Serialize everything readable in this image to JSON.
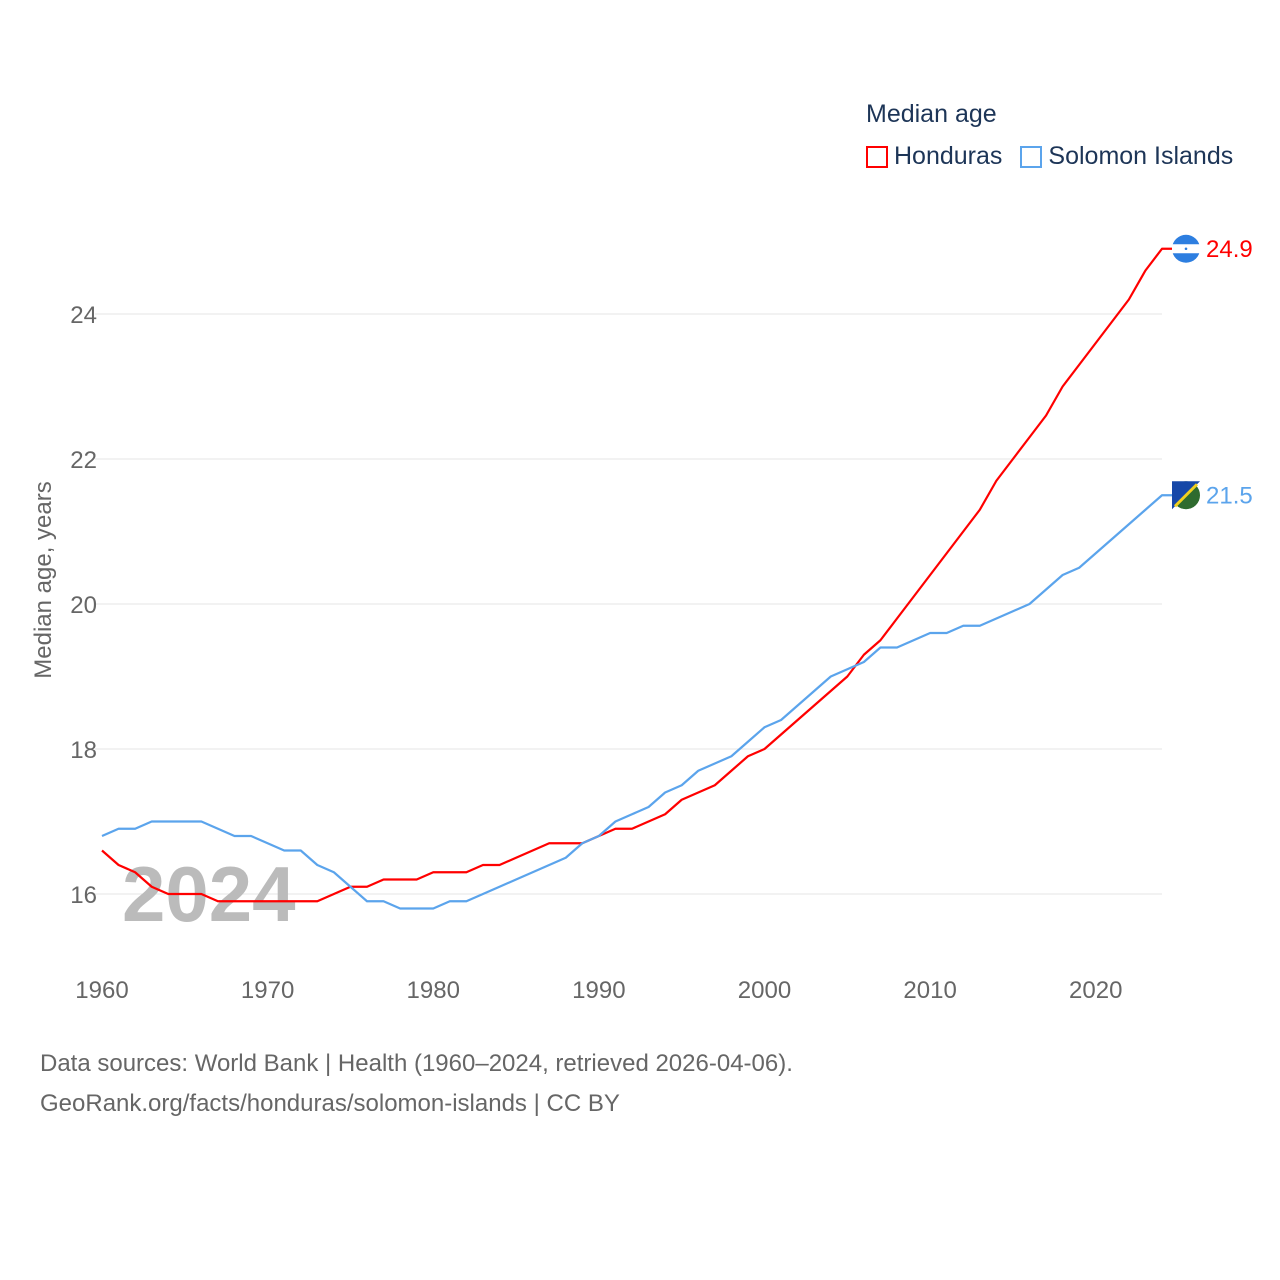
{
  "chart_data": {
    "type": "line",
    "legend_title": "Median age",
    "ylabel": "Median age, years",
    "xlabel": "",
    "xlim": [
      1960,
      2024
    ],
    "ylim": [
      15.0,
      25.5
    ],
    "yticks": [
      16,
      18,
      20,
      22,
      24
    ],
    "xticks": [
      1960,
      1970,
      1980,
      1990,
      2000,
      2010,
      2020
    ],
    "grid": true,
    "legend_position": "top-right",
    "watermark_year": "2024",
    "x": [
      1960,
      1961,
      1962,
      1963,
      1964,
      1965,
      1966,
      1967,
      1968,
      1969,
      1970,
      1971,
      1972,
      1973,
      1974,
      1975,
      1976,
      1977,
      1978,
      1979,
      1980,
      1981,
      1982,
      1983,
      1984,
      1985,
      1986,
      1987,
      1988,
      1989,
      1990,
      1991,
      1992,
      1993,
      1994,
      1995,
      1996,
      1997,
      1998,
      1999,
      2000,
      2001,
      2002,
      2003,
      2004,
      2005,
      2006,
      2007,
      2008,
      2009,
      2010,
      2011,
      2012,
      2013,
      2014,
      2015,
      2016,
      2017,
      2018,
      2019,
      2020,
      2021,
      2022,
      2023,
      2024
    ],
    "series": [
      {
        "name": "Honduras",
        "color": "#ff0000",
        "end_label": "24.9",
        "flag": "honduras-flag",
        "values": [
          16.6,
          16.4,
          16.3,
          16.1,
          16.0,
          16.0,
          16.0,
          15.9,
          15.9,
          15.9,
          15.9,
          15.9,
          15.9,
          15.9,
          16.0,
          16.1,
          16.1,
          16.2,
          16.2,
          16.2,
          16.3,
          16.3,
          16.3,
          16.4,
          16.4,
          16.5,
          16.6,
          16.7,
          16.7,
          16.7,
          16.8,
          16.9,
          16.9,
          17.0,
          17.1,
          17.3,
          17.4,
          17.5,
          17.7,
          17.9,
          18.0,
          18.2,
          18.4,
          18.6,
          18.8,
          19.0,
          19.3,
          19.5,
          19.8,
          20.1,
          20.4,
          20.7,
          21.0,
          21.3,
          21.7,
          22.0,
          22.3,
          22.6,
          23.0,
          23.3,
          23.6,
          23.9,
          24.2,
          24.6,
          24.9
        ]
      },
      {
        "name": "Solomon Islands",
        "color": "#5ba4ec",
        "end_label": "21.5",
        "flag": "solomon-islands-flag",
        "values": [
          16.8,
          16.9,
          16.9,
          17.0,
          17.0,
          17.0,
          17.0,
          16.9,
          16.8,
          16.8,
          16.7,
          16.6,
          16.6,
          16.4,
          16.3,
          16.1,
          15.9,
          15.9,
          15.8,
          15.8,
          15.8,
          15.9,
          15.9,
          16.0,
          16.1,
          16.2,
          16.3,
          16.4,
          16.5,
          16.7,
          16.8,
          17.0,
          17.1,
          17.2,
          17.4,
          17.5,
          17.7,
          17.8,
          17.9,
          18.1,
          18.3,
          18.4,
          18.6,
          18.8,
          19.0,
          19.1,
          19.2,
          19.4,
          19.4,
          19.5,
          19.6,
          19.6,
          19.7,
          19.7,
          19.8,
          19.9,
          20.0,
          20.2,
          20.4,
          20.5,
          20.7,
          20.9,
          21.1,
          21.3,
          21.5
        ]
      }
    ]
  },
  "footer": {
    "line1": "Data sources: World Bank | Health (1960–2024, retrieved 2026-04-06).",
    "line2": "GeoRank.org/facts/honduras/solomon-islands | CC BY"
  }
}
